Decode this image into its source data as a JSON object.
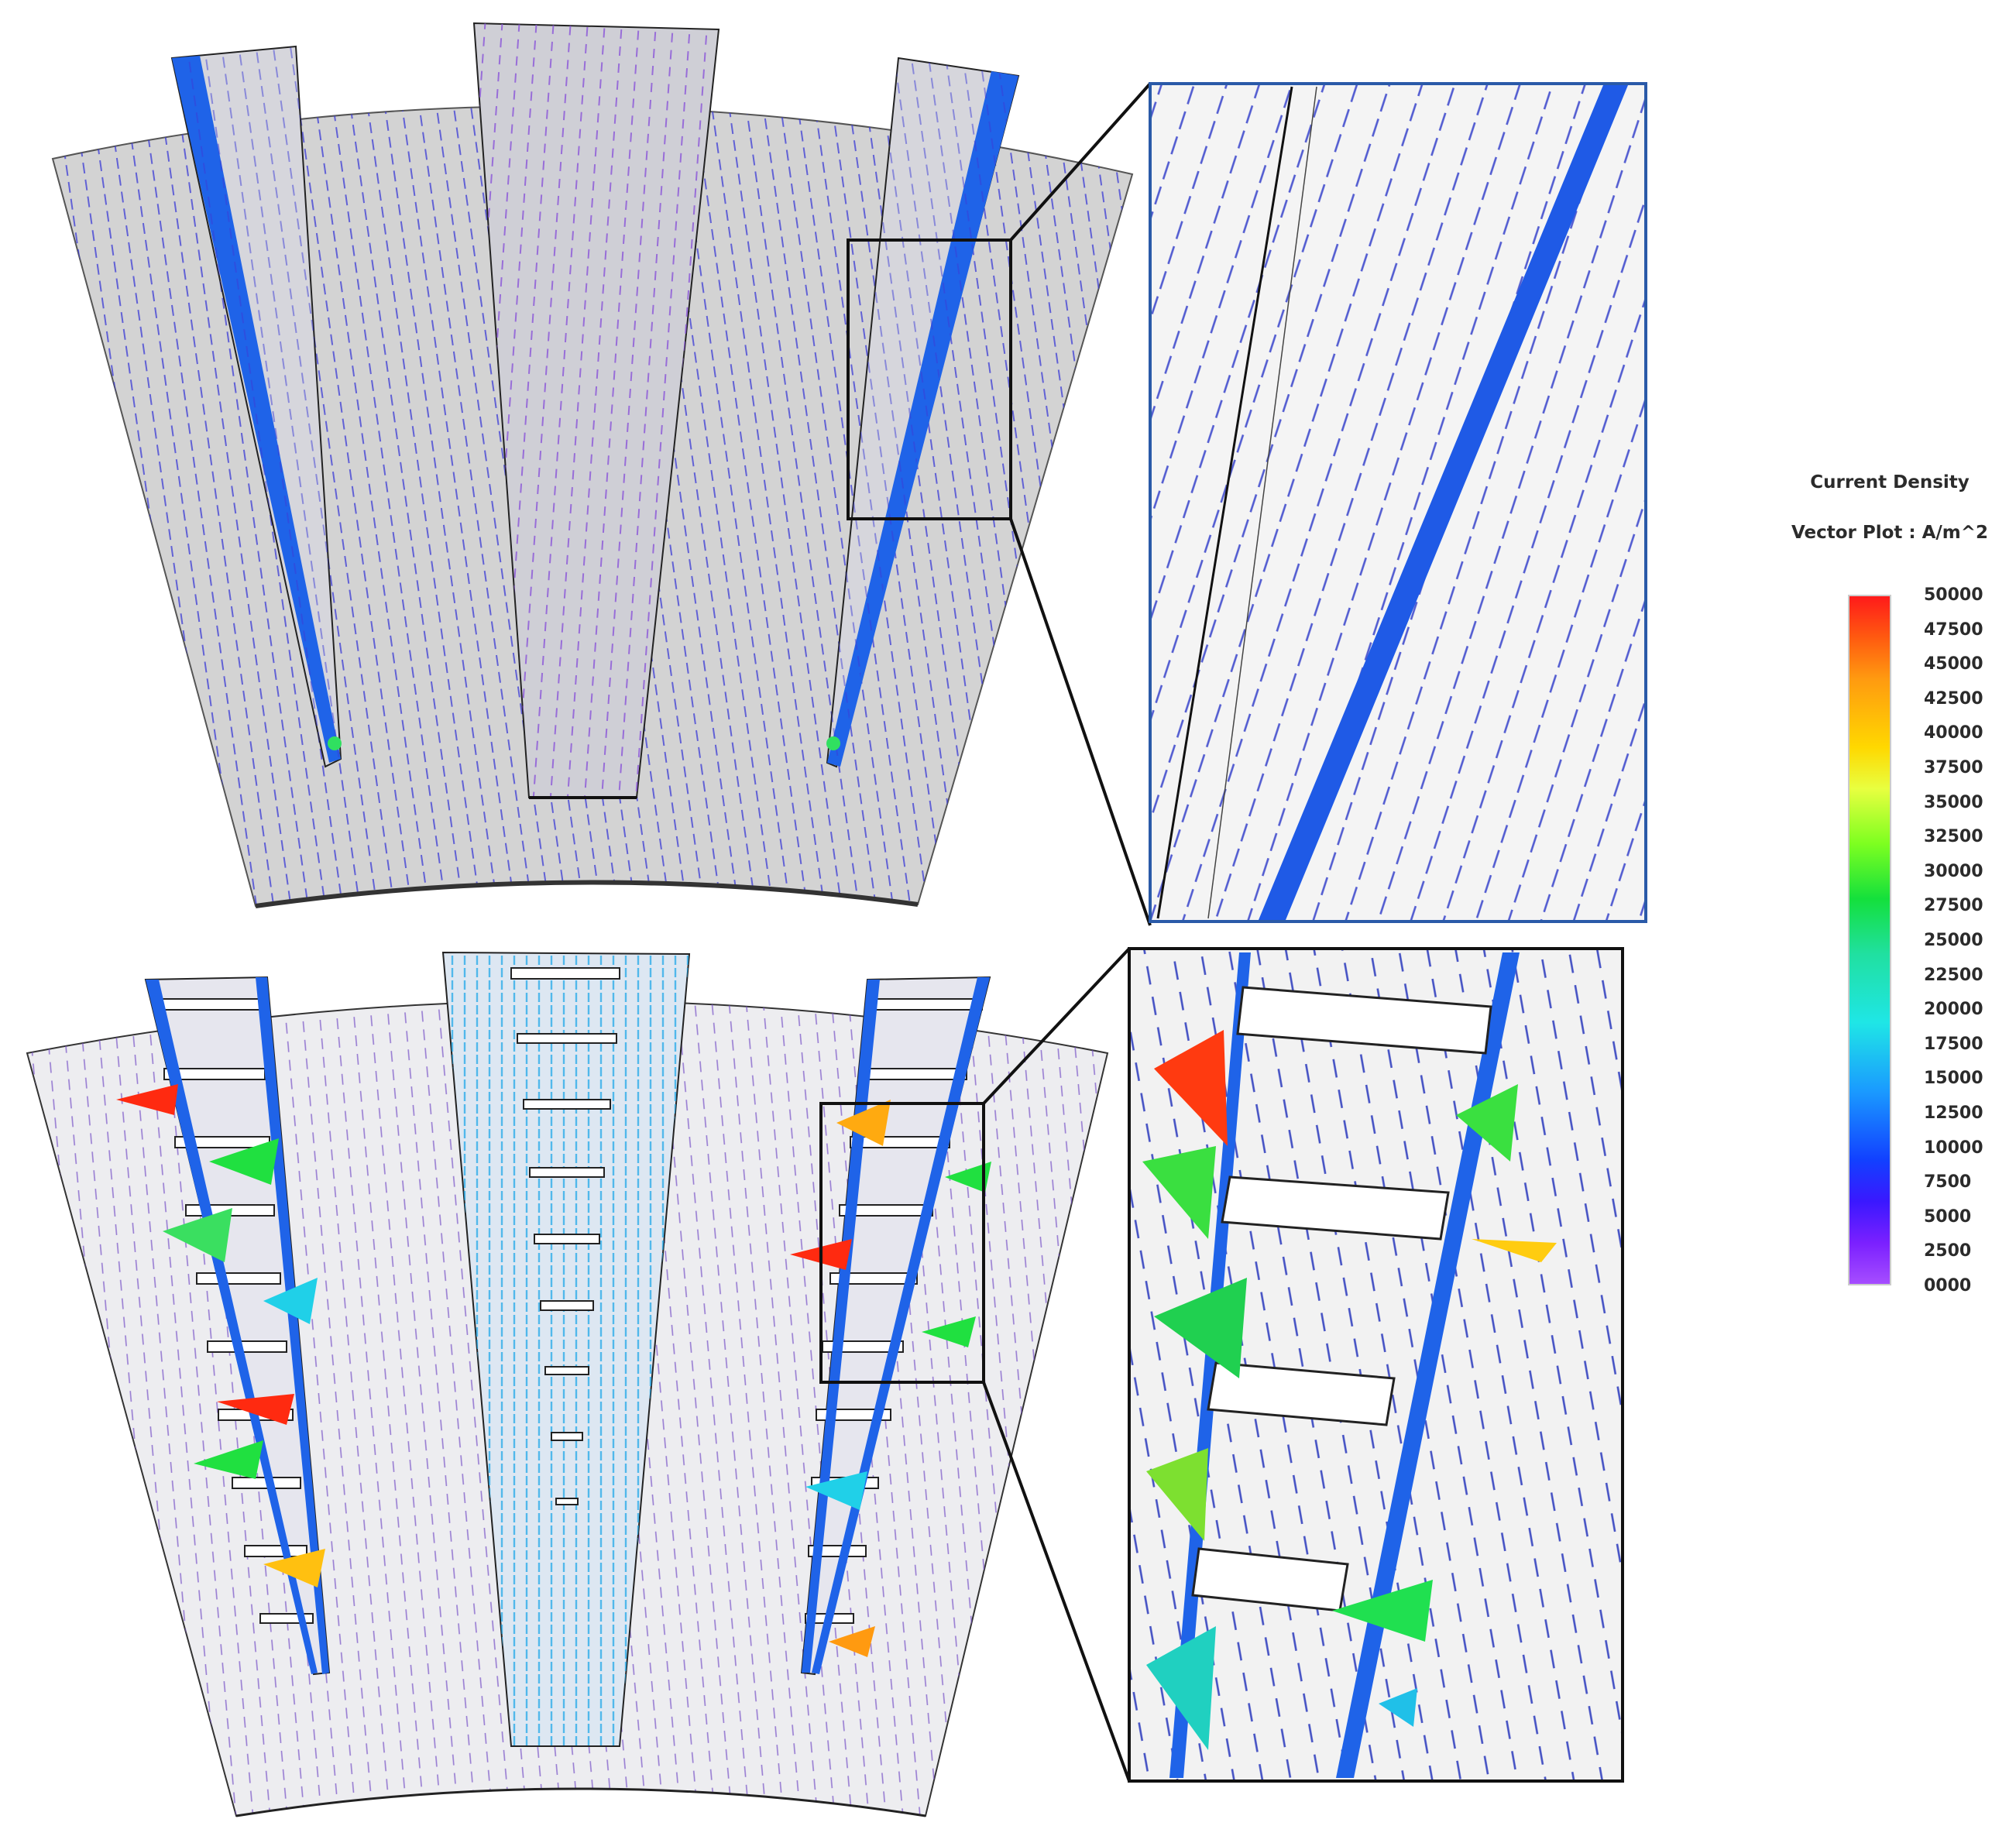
{
  "legend": {
    "title": "Current Density",
    "subtitle": "Vector Plot : A/m^2",
    "ticks": [
      "50000",
      "47500",
      "45000",
      "42500",
      "40000",
      "37500",
      "35000",
      "32500",
      "30000",
      "27500",
      "25000",
      "22500",
      "20000",
      "17500",
      "15000",
      "12500",
      "10000",
      "7500",
      "5000",
      "2500",
      "0000"
    ],
    "colors": [
      "#ff1a1a",
      "#ff9a10",
      "#ffd800",
      "#7dff20",
      "#14e03c",
      "#1fe6e6",
      "#1a9aff",
      "#1240ff",
      "#7a20ff",
      "#a64dff"
    ]
  },
  "panels": [
    {
      "name": "top-rotor-segment",
      "model": "smooth-slot"
    },
    {
      "name": "top-zoom-inset"
    },
    {
      "name": "bottom-rotor-segment",
      "model": "ribbed-slot"
    },
    {
      "name": "bottom-zoom-inset"
    }
  ]
}
